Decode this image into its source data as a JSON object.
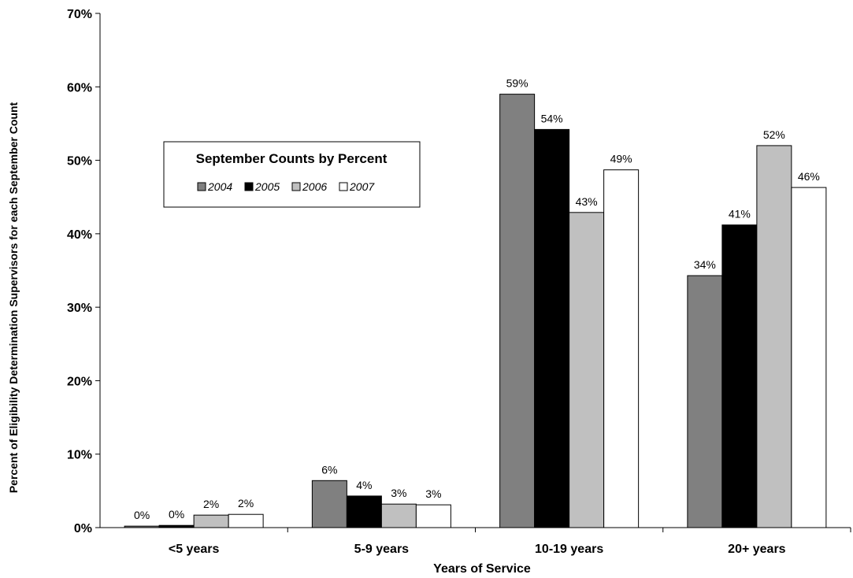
{
  "chart_data": {
    "type": "bar",
    "title": "",
    "xlabel": "Years of Service",
    "ylabel": "Percent of Eligibility Determination Supervisors for each September Count",
    "categories": [
      "<5 years",
      "5-9 years",
      "10-19 years",
      "20+ years"
    ],
    "series": [
      {
        "name": "2004",
        "values": [
          0.2,
          6.4,
          59.0,
          34.3
        ],
        "labels": [
          "0%",
          "6%",
          "59%",
          "34%"
        ],
        "color": "#808080"
      },
      {
        "name": "2005",
        "values": [
          0.3,
          4.3,
          54.2,
          41.2
        ],
        "labels": [
          "0%",
          "4%",
          "54%",
          "41%"
        ],
        "color": "#000000"
      },
      {
        "name": "2006",
        "values": [
          1.7,
          3.2,
          42.9,
          52.0
        ],
        "labels": [
          "2%",
          "3%",
          "43%",
          "52%"
        ],
        "color": "#c0c0c0"
      },
      {
        "name": "2007",
        "values": [
          1.8,
          3.1,
          48.7,
          46.3
        ],
        "labels": [
          "2%",
          "3%",
          "49%",
          "46%"
        ],
        "color": "#ffffff"
      }
    ],
    "ylim": [
      0,
      70
    ],
    "yticks": [
      0,
      10,
      20,
      30,
      40,
      50,
      60,
      70
    ],
    "ytick_labels": [
      "0%",
      "10%",
      "20%",
      "30%",
      "40%",
      "50%",
      "60%",
      "70%"
    ],
    "grid": false,
    "legend": {
      "title": "September Counts by Percent",
      "placement": "top-left"
    }
  }
}
